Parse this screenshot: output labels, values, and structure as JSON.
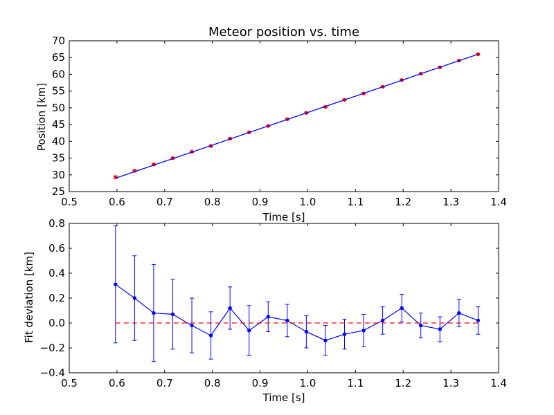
{
  "chart_data": [
    {
      "type": "scatter",
      "title": "Meteor position vs. time",
      "xlabel": "Time [s]",
      "ylabel": "Position [km]",
      "xlim": [
        0.5,
        1.4
      ],
      "ylim": [
        25,
        70
      ],
      "xticks": [
        "0.5",
        "0.6",
        "0.7",
        "0.8",
        "0.9",
        "1.0",
        "1.1",
        "1.2",
        "1.3",
        "1.4"
      ],
      "yticks": [
        "25",
        "30",
        "35",
        "40",
        "45",
        "50",
        "55",
        "60",
        "65",
        "70"
      ],
      "grid": false,
      "series": [
        {
          "kind": "points_with_errorbars",
          "color": "#ff0000",
          "x": [
            0.597,
            0.637,
            0.677,
            0.717,
            0.757,
            0.797,
            0.837,
            0.877,
            0.917,
            0.957,
            0.997,
            1.037,
            1.077,
            1.117,
            1.157,
            1.197,
            1.237,
            1.277,
            1.317,
            1.357
          ],
          "y": [
            29.3,
            31.2,
            33.1,
            35.0,
            36.9,
            38.6,
            40.8,
            42.7,
            44.6,
            46.6,
            48.5,
            50.3,
            52.4,
            54.3,
            56.3,
            58.3,
            60.2,
            62.1,
            64.1,
            66.0
          ],
          "yerr": [
            0.4,
            0.3,
            0.3,
            0.2,
            0.2,
            0.2,
            0.2,
            0.2,
            0.2,
            0.2,
            0.2,
            0.2,
            0.2,
            0.2,
            0.2,
            0.2,
            0.2,
            0.2,
            0.2,
            0.2
          ]
        },
        {
          "kind": "fit_line",
          "color": "#0000ff",
          "x": [
            0.597,
            1.357
          ],
          "y": [
            29.0,
            66.0
          ]
        }
      ]
    },
    {
      "type": "line",
      "title": "",
      "xlabel": "Time [s]",
      "ylabel": "Fit deviation [km]",
      "xlim": [
        0.5,
        1.4
      ],
      "ylim": [
        -0.4,
        0.8
      ],
      "xticks": [
        "0.5",
        "0.6",
        "0.7",
        "0.8",
        "0.9",
        "1.0",
        "1.1",
        "1.2",
        "1.3",
        "1.4"
      ],
      "yticks": [
        "−0.4",
        "−0.2",
        "0.0",
        "0.2",
        "0.4",
        "0.6",
        "0.8"
      ],
      "grid": false,
      "series": [
        {
          "kind": "line_with_errorbars",
          "color": "#0000ff",
          "x": [
            0.597,
            0.637,
            0.677,
            0.717,
            0.757,
            0.797,
            0.837,
            0.877,
            0.917,
            0.957,
            0.997,
            1.037,
            1.077,
            1.117,
            1.157,
            1.197,
            1.237,
            1.277,
            1.317,
            1.357
          ],
          "y": [
            0.31,
            0.2,
            0.08,
            0.07,
            -0.02,
            -0.1,
            0.12,
            -0.06,
            0.05,
            0.02,
            -0.07,
            -0.14,
            -0.09,
            -0.06,
            0.02,
            0.12,
            -0.02,
            -0.05,
            0.08,
            0.02
          ],
          "yerr": [
            0.47,
            0.34,
            0.39,
            0.28,
            0.22,
            0.19,
            0.17,
            0.2,
            0.12,
            0.13,
            0.13,
            0.12,
            0.12,
            0.13,
            0.11,
            0.11,
            0.1,
            0.1,
            0.11,
            0.11
          ]
        },
        {
          "kind": "reference_line",
          "color": "#ff0000",
          "style": "dashed",
          "x": [
            0.597,
            1.357
          ],
          "y": [
            0.0,
            0.0
          ]
        }
      ]
    }
  ]
}
